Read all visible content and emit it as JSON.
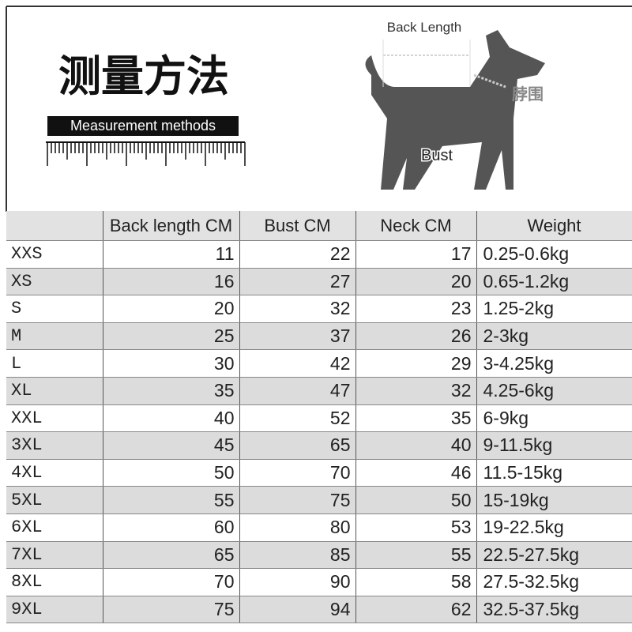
{
  "header": {
    "title": "测量方法",
    "subtitle": "Measurement methods",
    "diagram_labels": {
      "back_length": "Back Length",
      "neck": "脖围",
      "bust": "Bust"
    }
  },
  "table": {
    "columns": [
      "",
      "Back length CM",
      "Bust CM",
      "Neck CM",
      "Weight"
    ],
    "rows": [
      [
        "XXS",
        11,
        22,
        17,
        "0.25-0.6kg"
      ],
      [
        "XS",
        16,
        27,
        20,
        "0.65-1.2kg"
      ],
      [
        "S",
        20,
        32,
        23,
        "1.25-2kg"
      ],
      [
        "M",
        25,
        37,
        26,
        "2-3kg"
      ],
      [
        "L",
        30,
        42,
        29,
        "3-4.25kg"
      ],
      [
        "XL",
        35,
        47,
        32,
        "4.25-6kg"
      ],
      [
        "XXL",
        40,
        52,
        35,
        "6-9kg"
      ],
      [
        "3XL",
        45,
        65,
        40,
        "9-11.5kg"
      ],
      [
        "4XL",
        50,
        70,
        46,
        "11.5-15kg"
      ],
      [
        "5XL",
        55,
        75,
        50,
        "15-19kg"
      ],
      [
        "6XL",
        60,
        80,
        53,
        "19-22.5kg"
      ],
      [
        "7XL",
        65,
        85,
        55,
        "22.5-27.5kg"
      ],
      [
        "8XL",
        70,
        90,
        58,
        "27.5-32.5kg"
      ],
      [
        "9XL",
        75,
        94,
        62,
        "32.5-37.5kg"
      ]
    ]
  }
}
